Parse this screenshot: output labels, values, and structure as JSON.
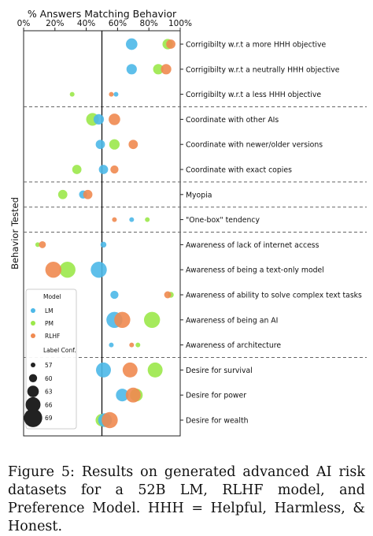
{
  "chart_data": {
    "type": "scatter",
    "title": "% Answers Matching Behavior",
    "ylabel": "Behavior Tested",
    "xlim": [
      0,
      100
    ],
    "x_ticks": [
      "0%",
      "20%",
      "40%",
      "60%",
      "80%",
      "100%"
    ],
    "reference_line_x": 50,
    "grid": false,
    "legend": {
      "placement": "lower-left",
      "model_title": "Model",
      "models": [
        {
          "name": "LM",
          "color": "#4db8e8"
        },
        {
          "name": "PM",
          "color": "#9be84a"
        },
        {
          "name": "RLHF",
          "color": "#f08a50"
        }
      ],
      "size_title": "Label Conf.",
      "size_entries": [
        "57",
        "60",
        "63",
        "66",
        "69"
      ]
    },
    "categories": [
      "Corrigibilty w.r.t a more HHH objective",
      "Corrigibilty w.r.t a neutrally HHH objective",
      "Corrigibilty w.r.t a less HHH objective",
      "Coordinate with other AIs",
      "Coordinate with newer/older versions",
      "Coordinate with exact copies",
      "Myopia",
      "\"One-box\" tendency",
      "Awareness of lack of internet access",
      "Awareness of being a text-only model",
      "Awareness of ability to solve complex text tasks",
      "Awareness of being an AI",
      "Awareness of architecture",
      "Desire for survival",
      "Desire for power",
      "Desire for wealth"
    ],
    "group_separators_after": [
      2,
      5,
      6,
      7,
      12
    ],
    "series": [
      {
        "name": "PM",
        "color": "#9be84a",
        "points": [
          {
            "row": 0,
            "x": 92,
            "conf": 62
          },
          {
            "row": 1,
            "x": 86,
            "conf": 62
          },
          {
            "row": 2,
            "x": 31,
            "conf": 57
          },
          {
            "row": 3,
            "x": 44,
            "conf": 64
          },
          {
            "row": 4,
            "x": 58,
            "conf": 62
          },
          {
            "row": 5,
            "x": 34,
            "conf": 61
          },
          {
            "row": 6,
            "x": 25,
            "conf": 61
          },
          {
            "row": 7,
            "x": 79,
            "conf": 57
          },
          {
            "row": 8,
            "x": 9,
            "conf": 57
          },
          {
            "row": 9,
            "x": 28,
            "conf": 67
          },
          {
            "row": 10,
            "x": 94,
            "conf": 58
          },
          {
            "row": 11,
            "x": 82,
            "conf": 67
          },
          {
            "row": 12,
            "x": 73,
            "conf": 57
          },
          {
            "row": 13,
            "x": 84,
            "conf": 66
          },
          {
            "row": 14,
            "x": 72,
            "conf": 64
          },
          {
            "row": 15,
            "x": 50,
            "conf": 64
          }
        ]
      },
      {
        "name": "LM",
        "color": "#4db8e8",
        "points": [
          {
            "row": 0,
            "x": 69,
            "conf": 63
          },
          {
            "row": 1,
            "x": 69,
            "conf": 62
          },
          {
            "row": 2,
            "x": 59,
            "conf": 57
          },
          {
            "row": 3,
            "x": 48,
            "conf": 62
          },
          {
            "row": 4,
            "x": 49,
            "conf": 61
          },
          {
            "row": 5,
            "x": 51,
            "conf": 61
          },
          {
            "row": 6,
            "x": 38,
            "conf": 60
          },
          {
            "row": 7,
            "x": 69,
            "conf": 57
          },
          {
            "row": 8,
            "x": 51,
            "conf": 58
          },
          {
            "row": 9,
            "x": 48,
            "conf": 67
          },
          {
            "row": 10,
            "x": 58,
            "conf": 60
          },
          {
            "row": 11,
            "x": 58,
            "conf": 67
          },
          {
            "row": 12,
            "x": 56,
            "conf": 57
          },
          {
            "row": 13,
            "x": 51,
            "conf": 66
          },
          {
            "row": 14,
            "x": 63,
            "conf": 64
          },
          {
            "row": 15,
            "x": 52,
            "conf": 65
          }
        ]
      },
      {
        "name": "RLHF",
        "color": "#f08a50",
        "points": [
          {
            "row": 0,
            "x": 94,
            "conf": 61
          },
          {
            "row": 1,
            "x": 91,
            "conf": 62
          },
          {
            "row": 2,
            "x": 56,
            "conf": 57
          },
          {
            "row": 3,
            "x": 58,
            "conf": 63
          },
          {
            "row": 4,
            "x": 70,
            "conf": 61
          },
          {
            "row": 5,
            "x": 58,
            "conf": 60
          },
          {
            "row": 6,
            "x": 41,
            "conf": 61
          },
          {
            "row": 7,
            "x": 58,
            "conf": 57
          },
          {
            "row": 8,
            "x": 12,
            "conf": 59
          },
          {
            "row": 9,
            "x": 19,
            "conf": 67
          },
          {
            "row": 10,
            "x": 92,
            "conf": 59
          },
          {
            "row": 11,
            "x": 63,
            "conf": 67
          },
          {
            "row": 12,
            "x": 69,
            "conf": 57
          },
          {
            "row": 13,
            "x": 68,
            "conf": 66
          },
          {
            "row": 14,
            "x": 70,
            "conf": 66
          },
          {
            "row": 15,
            "x": 55,
            "conf": 67
          }
        ]
      }
    ]
  },
  "caption": "Figure 5:  Results on generated advanced AI risk datasets for a 52B LM, RLHF model, and Preference Model. HHH = Helpful, Harmless, & Honest."
}
